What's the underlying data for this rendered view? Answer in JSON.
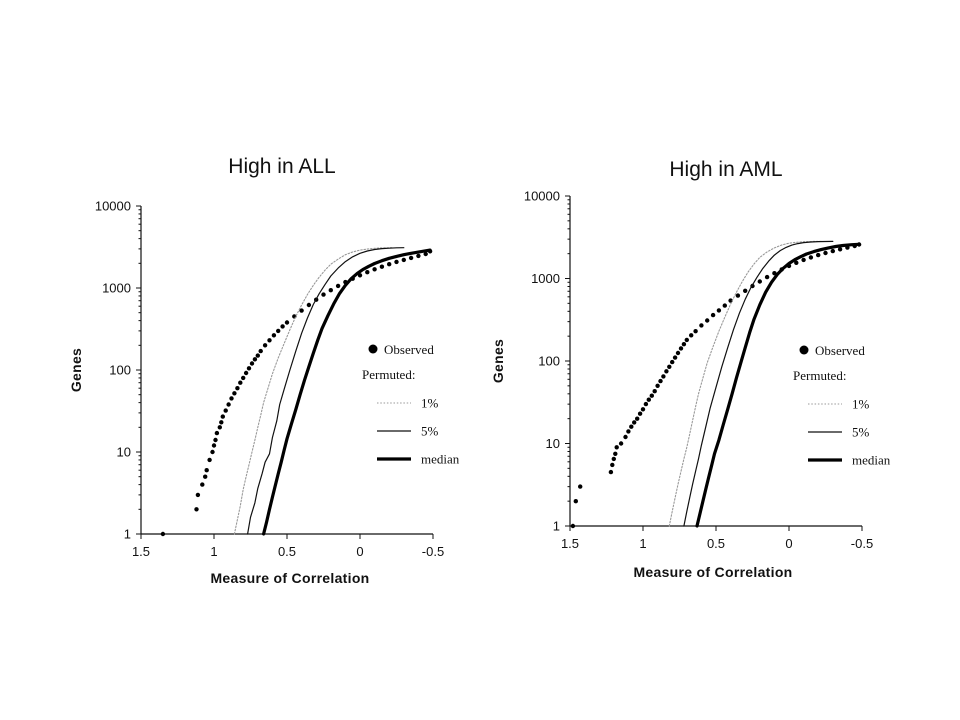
{
  "chart_data": [
    {
      "type": "line",
      "title": "High in ALL",
      "xlabel": "Measure of Correlation",
      "ylabel": "Genes",
      "xlim": [
        1.5,
        -0.5
      ],
      "ylim": [
        1,
        10000
      ],
      "yscale": "log",
      "x_reversed": true,
      "x_ticks": [
        "1.5",
        "1",
        "0.5",
        "0",
        "-0.5"
      ],
      "y_ticks": [
        "10000",
        "1000",
        "100",
        "10",
        "1"
      ],
      "legend": {
        "observed_label": "Observed",
        "permuted_label": "Permuted:",
        "position": "right",
        "entries": [
          "1%",
          "5%",
          "median"
        ]
      },
      "series": [
        {
          "name": "Observed",
          "style": "dots",
          "x": [
            1.35,
            1.12,
            1.11,
            1.08,
            1.06,
            1.05,
            1.03,
            1.01,
            1.0,
            0.99,
            0.98,
            0.96,
            0.95,
            0.94,
            0.92,
            0.9,
            0.88,
            0.86,
            0.84,
            0.82,
            0.8,
            0.78,
            0.76,
            0.74,
            0.72,
            0.7,
            0.68,
            0.65,
            0.62,
            0.59,
            0.56,
            0.53,
            0.5,
            0.45,
            0.4,
            0.35,
            0.3,
            0.25,
            0.2,
            0.15,
            0.1,
            0.05,
            0.0,
            -0.05,
            -0.1,
            -0.15,
            -0.2,
            -0.25,
            -0.3,
            -0.35,
            -0.4,
            -0.45,
            -0.48
          ],
          "y": [
            1,
            2,
            3,
            4,
            5,
            6,
            8,
            10,
            12,
            14,
            17,
            20,
            23,
            27,
            32,
            38,
            45,
            52,
            60,
            70,
            80,
            92,
            105,
            120,
            135,
            150,
            170,
            200,
            230,
            265,
            300,
            340,
            380,
            450,
            530,
            620,
            720,
            830,
            940,
            1060,
            1180,
            1300,
            1430,
            1560,
            1690,
            1820,
            1950,
            2080,
            2200,
            2330,
            2460,
            2600,
            2800
          ]
        },
        {
          "name": "1%",
          "style": "dotted",
          "x": [
            0.86,
            0.84,
            0.82,
            0.8,
            0.78,
            0.76,
            0.74,
            0.72,
            0.7,
            0.68,
            0.66,
            0.63,
            0.6,
            0.56,
            0.52,
            0.48,
            0.44,
            0.4,
            0.36,
            0.32,
            0.28,
            0.24,
            0.2,
            0.15,
            0.1,
            0.05,
            0.0,
            -0.05,
            -0.1,
            -0.15,
            -0.22
          ],
          "y": [
            1,
            1.5,
            2.2,
            3.5,
            5,
            7,
            10,
            14,
            20,
            28,
            40,
            60,
            90,
            140,
            210,
            310,
            450,
            620,
            830,
            1080,
            1350,
            1650,
            1950,
            2250,
            2550,
            2750,
            2900,
            2980,
            3050,
            3080,
            3100
          ]
        },
        {
          "name": "5%",
          "style": "thin",
          "x": [
            0.77,
            0.75,
            0.72,
            0.7,
            0.67,
            0.65,
            0.62,
            0.6,
            0.57,
            0.55,
            0.52,
            0.48,
            0.44,
            0.4,
            0.36,
            0.32,
            0.28,
            0.24,
            0.2,
            0.15,
            0.1,
            0.05,
            0.0,
            -0.05,
            -0.1,
            -0.15,
            -0.2,
            -0.25,
            -0.3
          ],
          "y": [
            1,
            1.6,
            2.4,
            3.6,
            5.5,
            7.5,
            9.5,
            15,
            24,
            38,
            58,
            100,
            170,
            280,
            430,
            630,
            850,
            1100,
            1400,
            1750,
            2100,
            2400,
            2650,
            2830,
            2950,
            3020,
            3060,
            3090,
            3100
          ]
        },
        {
          "name": "median",
          "style": "thick",
          "x": [
            0.66,
            0.64,
            0.62,
            0.6,
            0.58,
            0.56,
            0.54,
            0.52,
            0.5,
            0.47,
            0.44,
            0.41,
            0.38,
            0.35,
            0.32,
            0.29,
            0.26,
            0.22,
            0.18,
            0.14,
            0.1,
            0.06,
            0.02,
            -0.02,
            -0.06,
            -0.1,
            -0.15,
            -0.2,
            -0.25,
            -0.3,
            -0.35,
            -0.42,
            -0.48
          ],
          "y": [
            1,
            1.4,
            2,
            2.8,
            3.9,
            5.4,
            7.5,
            10.5,
            14.5,
            22,
            33,
            50,
            75,
            110,
            160,
            230,
            320,
            460,
            640,
            860,
            1080,
            1300,
            1500,
            1680,
            1840,
            1990,
            2150,
            2300,
            2430,
            2550,
            2650,
            2780,
            2900
          ]
        }
      ]
    },
    {
      "type": "line",
      "title": "High in AML",
      "xlabel": "Measure of Correlation",
      "ylabel": "Genes",
      "xlim": [
        1.5,
        -0.5
      ],
      "ylim": [
        1,
        10000
      ],
      "yscale": "log",
      "x_reversed": true,
      "x_ticks": [
        "1.5",
        "1",
        "0.5",
        "0",
        "-0.5"
      ],
      "y_ticks": [
        "10000",
        "1000",
        "100",
        "10",
        "1"
      ],
      "legend": {
        "observed_label": "Observed",
        "permuted_label": "Permuted:",
        "position": "right",
        "entries": [
          "1%",
          "5%",
          "median"
        ]
      },
      "series": [
        {
          "name": "Observed",
          "style": "dots",
          "x": [
            1.48,
            1.46,
            1.43,
            1.22,
            1.21,
            1.2,
            1.19,
            1.18,
            1.15,
            1.12,
            1.1,
            1.08,
            1.06,
            1.04,
            1.02,
            1.0,
            0.98,
            0.96,
            0.94,
            0.92,
            0.9,
            0.88,
            0.86,
            0.84,
            0.82,
            0.8,
            0.78,
            0.76,
            0.74,
            0.72,
            0.7,
            0.67,
            0.64,
            0.6,
            0.56,
            0.52,
            0.48,
            0.44,
            0.4,
            0.35,
            0.3,
            0.25,
            0.2,
            0.15,
            0.1,
            0.05,
            0.0,
            -0.05,
            -0.1,
            -0.15,
            -0.2,
            -0.25,
            -0.3,
            -0.35,
            -0.4,
            -0.45,
            -0.48
          ],
          "y": [
            1,
            2,
            3,
            4.5,
            5.5,
            6.5,
            7.5,
            9,
            10,
            12,
            14,
            16,
            18,
            20,
            23,
            26,
            30,
            34,
            38,
            43,
            50,
            57,
            65,
            75,
            85,
            97,
            110,
            125,
            142,
            160,
            180,
            205,
            230,
            270,
            310,
            360,
            410,
            470,
            540,
            620,
            710,
            810,
            920,
            1040,
            1160,
            1290,
            1420,
            1550,
            1680,
            1800,
            1920,
            2040,
            2150,
            2260,
            2370,
            2480,
            2580
          ]
        },
        {
          "name": "1%",
          "style": "dotted",
          "x": [
            0.82,
            0.8,
            0.78,
            0.76,
            0.74,
            0.72,
            0.7,
            0.68,
            0.66,
            0.64,
            0.62,
            0.59,
            0.56,
            0.52,
            0.48,
            0.44,
            0.4,
            0.36,
            0.32,
            0.28,
            0.24,
            0.2,
            0.15,
            0.1,
            0.05,
            0.0,
            -0.05,
            -0.1,
            -0.15,
            -0.22
          ],
          "y": [
            1,
            1.5,
            2.2,
            3.2,
            4.6,
            6.5,
            9,
            13,
            19,
            28,
            40,
            62,
            95,
            150,
            230,
            340,
            490,
            680,
            920,
            1200,
            1500,
            1800,
            2100,
            2350,
            2550,
            2680,
            2750,
            2790,
            2810,
            2820
          ]
        },
        {
          "name": "5%",
          "style": "thin",
          "x": [
            0.72,
            0.7,
            0.68,
            0.66,
            0.64,
            0.62,
            0.6,
            0.57,
            0.54,
            0.5,
            0.46,
            0.42,
            0.38,
            0.34,
            0.3,
            0.26,
            0.22,
            0.18,
            0.14,
            0.1,
            0.06,
            0.02,
            -0.02,
            -0.06,
            -0.1,
            -0.15,
            -0.2,
            -0.25,
            -0.3
          ],
          "y": [
            1,
            1.5,
            2.2,
            3.2,
            4.6,
            6.5,
            9.5,
            16,
            27,
            48,
            85,
            145,
            240,
            380,
            560,
            780,
            1030,
            1320,
            1620,
            1920,
            2180,
            2380,
            2540,
            2650,
            2720,
            2770,
            2800,
            2810,
            2820
          ]
        },
        {
          "name": "median",
          "style": "thick",
          "x": [
            0.63,
            0.61,
            0.59,
            0.57,
            0.55,
            0.53,
            0.51,
            0.48,
            0.45,
            0.42,
            0.39,
            0.36,
            0.33,
            0.3,
            0.27,
            0.24,
            0.2,
            0.16,
            0.12,
            0.08,
            0.04,
            0.0,
            -0.04,
            -0.08,
            -0.12,
            -0.17,
            -0.22,
            -0.27,
            -0.32,
            -0.37,
            -0.43,
            -0.48
          ],
          "y": [
            1,
            1.4,
            2,
            2.8,
            3.9,
            5.4,
            7.5,
            11,
            17,
            26,
            40,
            62,
            95,
            145,
            220,
            320,
            480,
            680,
            900,
            1120,
            1330,
            1520,
            1690,
            1840,
            1980,
            2120,
            2240,
            2350,
            2440,
            2510,
            2570,
            2600
          ]
        }
      ]
    }
  ]
}
